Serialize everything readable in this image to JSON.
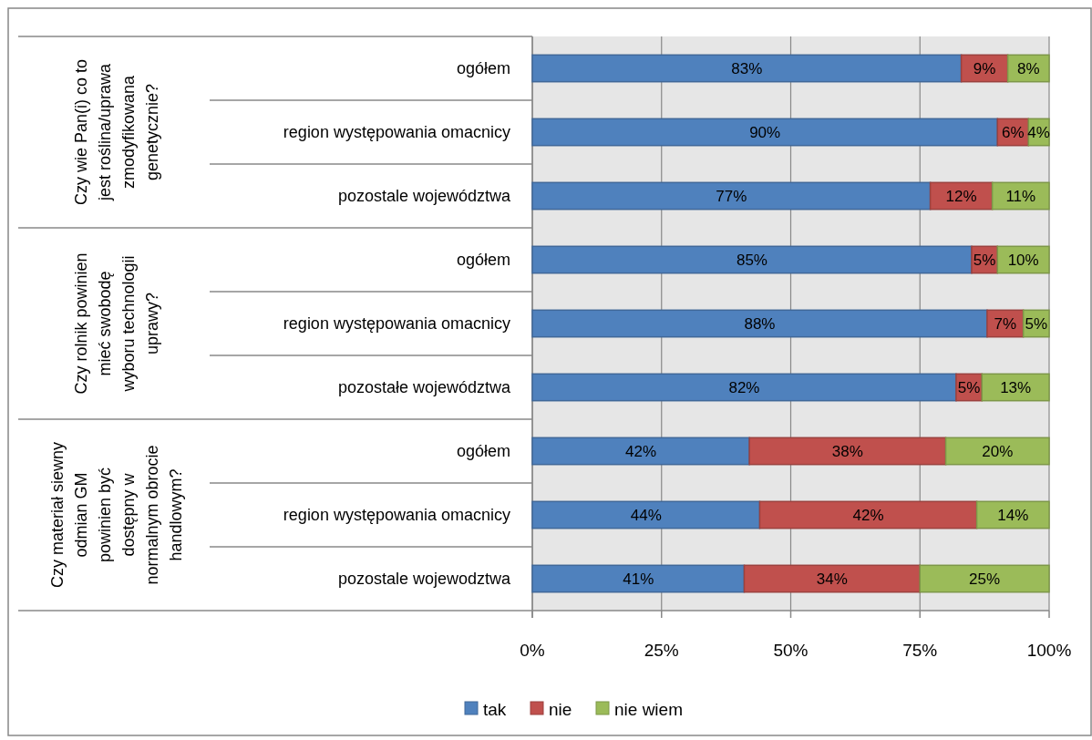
{
  "chart_data": {
    "type": "bar",
    "orientation": "horizontal",
    "stacked": true,
    "categories": [
      "ogółem",
      "region występowania omacnicy",
      "pozostale województwa",
      "ogółem",
      "region występowania omacnicy",
      "pozostałe województwa",
      "ogółem",
      "region występowania omacnicy",
      "pozostale wojewodztwa"
    ],
    "series": [
      {
        "name": "tak",
        "color": "#4f81bd",
        "values": [
          83,
          90,
          77,
          85,
          88,
          82,
          42,
          44,
          41
        ],
        "value_labels": [
          "83%",
          "90%",
          "77%",
          "85%",
          "88%",
          "82%",
          "42%",
          "44%",
          "41%"
        ]
      },
      {
        "name": "nie",
        "color": "#c0504d",
        "values": [
          9,
          6,
          12,
          5,
          7,
          5,
          38,
          42,
          34
        ],
        "value_labels": [
          "9%",
          "6%",
          "12%",
          "5%",
          "7%",
          "5%",
          "38%",
          "42%",
          "34%"
        ]
      },
      {
        "name": "nie wiem",
        "color": "#9bbb59",
        "values": [
          8,
          4,
          11,
          10,
          5,
          13,
          20,
          14,
          25
        ],
        "value_labels": [
          "8%",
          "4%",
          "11%",
          "10%",
          "5%",
          "13%",
          "20%",
          "14%",
          "25%"
        ]
      }
    ],
    "xlim": [
      0,
      100
    ],
    "xticks": [
      {
        "value": 0,
        "label": "0%"
      },
      {
        "value": 25,
        "label": "25%"
      },
      {
        "value": 50,
        "label": "50%"
      },
      {
        "value": 75,
        "label": "75%"
      },
      {
        "value": 100,
        "label": "100%"
      }
    ],
    "grid": "x",
    "legend": "bottom",
    "annotations": [
      "Czy wie Pan(i) co to\njest roślina/uprawa\nzmodyfikowana\ngenetycznie?",
      "Czy rolnik powinien\nmieć swobodę\nwyboru technologii\nuprawy?",
      "Czy materiał siewny\nodmian GM\npowinien być\ndostępny w\nnormalnym obrocie\nhandlowym?"
    ]
  }
}
